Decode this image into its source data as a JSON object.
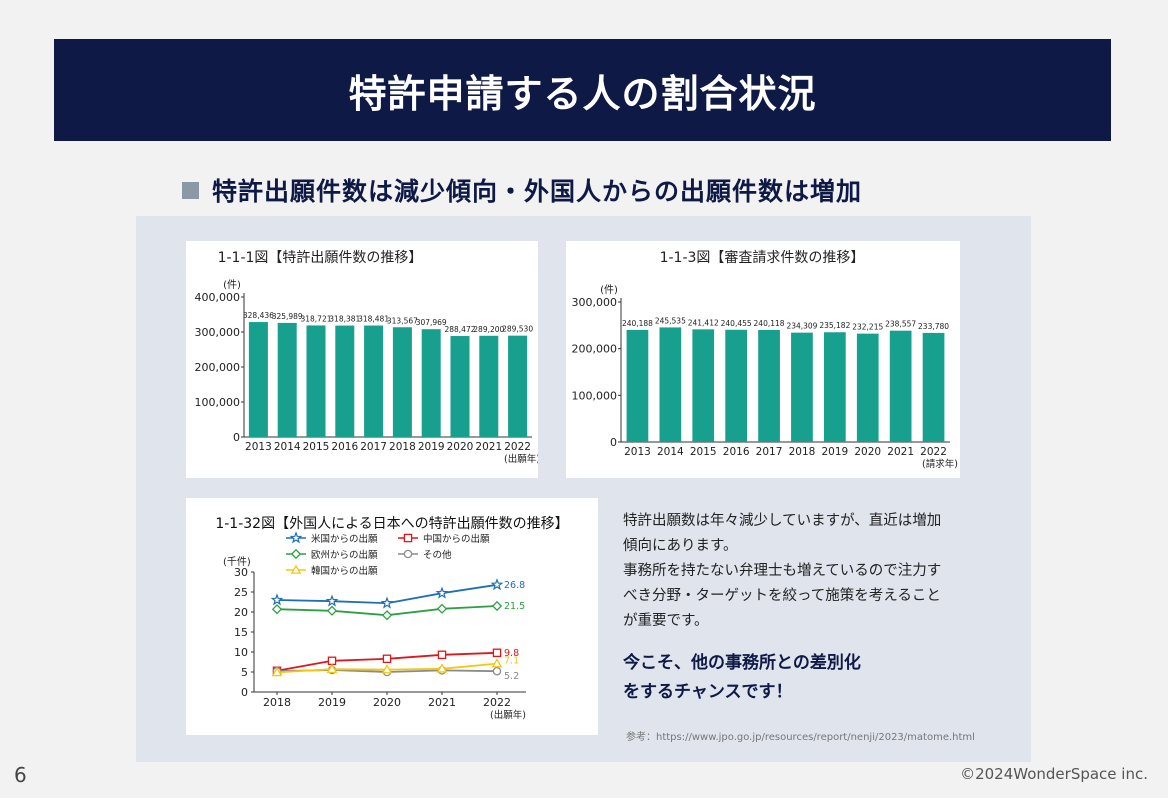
{
  "slide": {
    "title": "特許申請する人の割合状況",
    "subtitle": "特許出願件数は減少傾向・外国人からの出願件数は増加",
    "description": [
      "特許出願数は年々減少していますが、直近は増加",
      "傾向にあります。",
      "事務所を持たない弁理士も増えているので注力す",
      "べき分野・ターゲットを絞って施策を考えること",
      "が重要です。"
    ],
    "cta": [
      "今こそ、他の事務所との差別化",
      "をするチャンスです！"
    ],
    "reference": "参考：https://www.jpo.go.jp/resources/report/nenji/2023/matome.html",
    "page_number": "6",
    "copyright": "©2024WonderSpace inc.",
    "colors": {
      "navy": "#0e1a45",
      "bar": "#17a08e"
    }
  },
  "chart_data": [
    {
      "type": "bar",
      "title": "1-1-1図【特許出願件数の推移】",
      "ylabel": "(件)",
      "xlabel": "(出願年)",
      "categories": [
        "2013",
        "2014",
        "2015",
        "2016",
        "2017",
        "2018",
        "2019",
        "2020",
        "2021",
        "2022"
      ],
      "values": [
        328436,
        325989,
        318721,
        318381,
        318481,
        313567,
        307969,
        288472,
        289200,
        289530
      ],
      "value_labels": [
        "328,436",
        "325,989",
        "318,721",
        "318,381",
        "318,481",
        "313,567",
        "307,969",
        "288,472",
        "289,200",
        "289,530"
      ],
      "ylim": [
        0,
        400000
      ],
      "yticks": [
        0,
        100000,
        200000,
        300000,
        400000
      ],
      "ytick_labels": [
        "0",
        "100,000",
        "200,000",
        "300,000",
        "400,000"
      ]
    },
    {
      "type": "bar",
      "title": "1-1-3図【審査請求件数の推移】",
      "ylabel": "(件)",
      "xlabel": "(請求年)",
      "categories": [
        "2013",
        "2014",
        "2015",
        "2016",
        "2017",
        "2018",
        "2019",
        "2020",
        "2021",
        "2022"
      ],
      "values": [
        240188,
        245535,
        241412,
        240455,
        240118,
        234309,
        235182,
        232215,
        238557,
        233780
      ],
      "value_labels": [
        "240,188",
        "245,535",
        "241,412",
        "240,455",
        "240,118",
        "234,309",
        "235,182",
        "232,215",
        "238,557",
        "233,780"
      ],
      "ylim": [
        0,
        300000
      ],
      "yticks": [
        0,
        100000,
        200000,
        300000
      ],
      "ytick_labels": [
        "0",
        "100,000",
        "200,000",
        "300,000"
      ]
    },
    {
      "type": "line",
      "title": "1-1-32図【外国人による日本への特許出願件数の推移】",
      "ylabel": "(千件)",
      "xlabel": "(出願年)",
      "x": [
        "2018",
        "2019",
        "2020",
        "2021",
        "2022"
      ],
      "ylim": [
        0,
        30
      ],
      "yticks": [
        0,
        5,
        10,
        15,
        20,
        25,
        30
      ],
      "series": [
        {
          "name": "米国からの出願",
          "values": [
            23.0,
            22.7,
            22.2,
            24.7,
            26.8
          ],
          "end_label": "26.8",
          "color": "#1f6fb5",
          "marker": "star"
        },
        {
          "name": "中国からの出願",
          "values": [
            5.3,
            7.8,
            8.3,
            9.3,
            9.8
          ],
          "end_label": "9.8",
          "color": "#e0161b",
          "marker": "square"
        },
        {
          "name": "欧州からの出願",
          "values": [
            20.7,
            20.3,
            19.2,
            20.8,
            21.5
          ],
          "end_label": "21.5",
          "color": "#2ea043",
          "marker": "diamond"
        },
        {
          "name": "その他",
          "values": [
            5.2,
            5.5,
            5.0,
            5.4,
            5.2
          ],
          "end_label": "5.2",
          "color": "#8a8a8a",
          "marker": "circle"
        },
        {
          "name": "韓国からの出願",
          "values": [
            4.9,
            5.7,
            5.6,
            5.8,
            7.1
          ],
          "end_label": "7.1",
          "color": "#f2c811",
          "marker": "triangle"
        }
      ]
    }
  ]
}
